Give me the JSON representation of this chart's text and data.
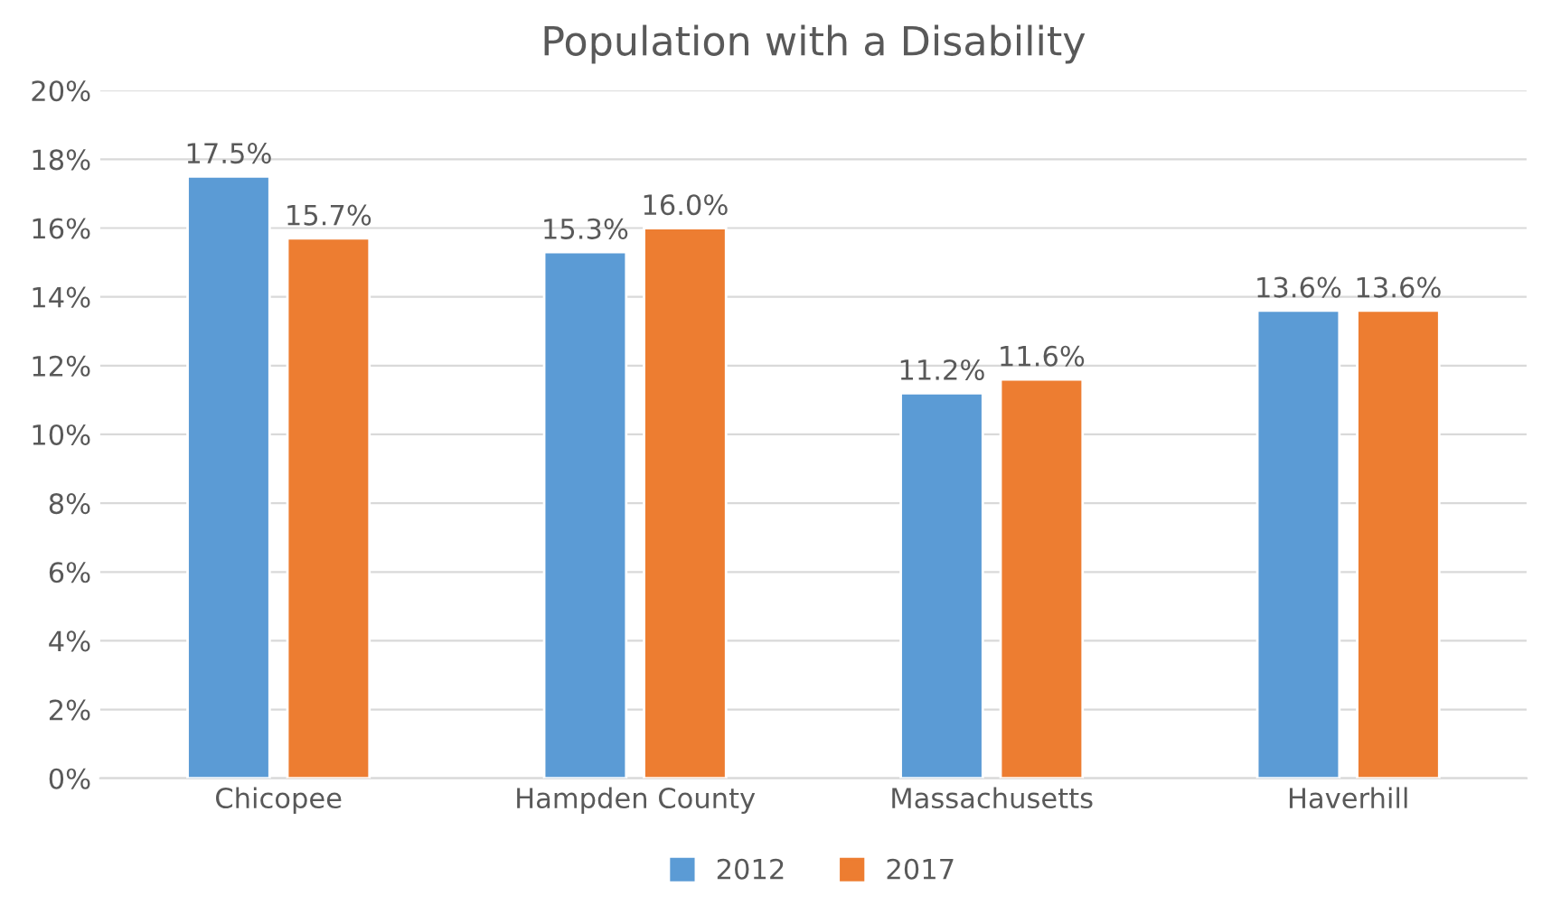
{
  "chart_data": {
    "type": "bar",
    "title": "Population with a Disability",
    "categories": [
      "Chicopee",
      "Hampden County",
      "Massachusetts",
      "Haverhill"
    ],
    "series": [
      {
        "name": "2012",
        "color": "#5b9bd5",
        "values": [
          17.5,
          15.3,
          11.2,
          13.6
        ],
        "value_labels": [
          "17.5%",
          "15.3%",
          "11.2%",
          "13.6%"
        ]
      },
      {
        "name": "2017",
        "color": "#ed7d31",
        "values": [
          15.7,
          16.0,
          11.6,
          13.6
        ],
        "value_labels": [
          "15.7%",
          "16.0%",
          "11.6%",
          "13.6%"
        ]
      }
    ],
    "ylim": [
      0,
      20
    ],
    "yticks": [
      {
        "value": 0,
        "label": "0%"
      },
      {
        "value": 2,
        "label": "2%"
      },
      {
        "value": 4,
        "label": "4%"
      },
      {
        "value": 6,
        "label": "6%"
      },
      {
        "value": 8,
        "label": "8%"
      },
      {
        "value": 10,
        "label": "10%"
      },
      {
        "value": 12,
        "label": "12%"
      },
      {
        "value": 14,
        "label": "14%"
      },
      {
        "value": 16,
        "label": "16%"
      },
      {
        "value": 18,
        "label": "18%"
      },
      {
        "value": 20,
        "label": "20%"
      }
    ],
    "grid": "y",
    "legend": "bottom"
  }
}
